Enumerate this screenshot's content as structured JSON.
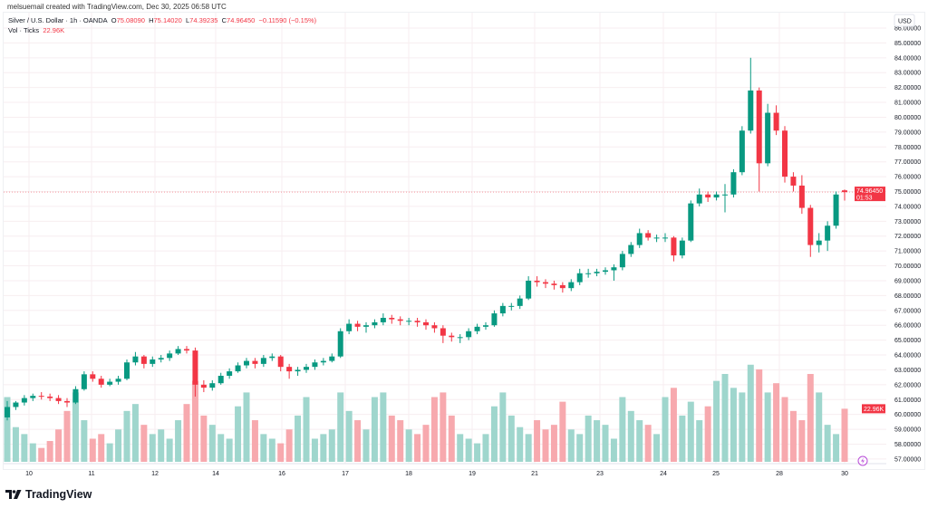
{
  "credit": "melsuemail created with TradingView.com, Dec 30, 2025 06:58 UTC",
  "legend": {
    "symbol": "Silver / U.S. Dollar · 1h · OANDA",
    "o_label": "O",
    "o": "75.08090",
    "h_label": "H",
    "h": "75.14020",
    "l_label": "L",
    "l": "74.39235",
    "c_label": "C",
    "c": "74.96450",
    "change": "−0.11590 (−0.15%)",
    "vol_label": "Vol · Ticks",
    "vol": "22.96K"
  },
  "logo": "TradingView",
  "colors": {
    "up": "#089981",
    "down": "#f23645",
    "up_volume": "#9fd6cd",
    "down_volume": "#f7a9ae",
    "indicator_icon": "#b84cd8"
  },
  "chart_data": {
    "type": "candlestick",
    "interval": "1h",
    "currency": "USD",
    "ylim": [
      56.2,
      86.1
    ],
    "y_ticks": [
      "57.00000",
      "58.00000",
      "59.00000",
      "60.00000",
      "61.00000",
      "62.00000",
      "63.00000",
      "64.00000",
      "65.00000",
      "66.00000",
      "67.00000",
      "68.00000",
      "69.00000",
      "70.00000",
      "71.00000",
      "72.00000",
      "73.00000",
      "74.00000",
      "75.00000",
      "76.00000",
      "77.00000",
      "78.00000",
      "79.00000",
      "80.00000",
      "81.00000",
      "82.00000",
      "83.00000",
      "84.00000",
      "85.00000",
      "86.00000"
    ],
    "x_ticks": [
      "10",
      "11",
      "12",
      "14",
      "16",
      "17",
      "18",
      "19",
      "21",
      "23",
      "24",
      "25",
      "28",
      "30"
    ],
    "last_price": {
      "value": 74.9645,
      "label": "74.96450",
      "countdown": "01:53"
    },
    "last_volume_label": "22.96K",
    "grid": true,
    "ohlc": [
      [
        59.8,
        60.9,
        59.6,
        60.5
      ],
      [
        60.5,
        60.9,
        60.3,
        60.8
      ],
      [
        60.8,
        61.3,
        60.6,
        61.1
      ],
      [
        61.1,
        61.4,
        60.9,
        61.25
      ],
      [
        61.25,
        61.5,
        61.0,
        61.2
      ],
      [
        61.2,
        61.4,
        60.9,
        61.1
      ],
      [
        61.1,
        61.3,
        60.7,
        60.9
      ],
      [
        60.9,
        61.1,
        60.5,
        60.8
      ],
      [
        60.8,
        61.9,
        60.7,
        61.7
      ],
      [
        61.7,
        62.9,
        61.6,
        62.7
      ],
      [
        62.7,
        62.9,
        62.2,
        62.4
      ],
      [
        62.4,
        62.6,
        61.8,
        62.0
      ],
      [
        62.0,
        62.4,
        61.9,
        62.2
      ],
      [
        62.2,
        62.6,
        62.0,
        62.4
      ],
      [
        62.4,
        63.7,
        62.3,
        63.5
      ],
      [
        63.5,
        64.2,
        63.3,
        63.9
      ],
      [
        63.9,
        64.0,
        63.1,
        63.4
      ],
      [
        63.4,
        63.9,
        63.2,
        63.7
      ],
      [
        63.7,
        64.0,
        63.5,
        63.8
      ],
      [
        63.8,
        64.3,
        63.6,
        64.1
      ],
      [
        64.1,
        64.6,
        64.0,
        64.4
      ],
      [
        64.4,
        64.6,
        64.1,
        64.3
      ],
      [
        64.3,
        64.5,
        61.2,
        62.0
      ],
      [
        62.0,
        62.3,
        61.5,
        61.8
      ],
      [
        61.8,
        62.3,
        61.6,
        62.1
      ],
      [
        62.1,
        62.8,
        62.0,
        62.6
      ],
      [
        62.6,
        63.1,
        62.4,
        62.9
      ],
      [
        62.9,
        63.5,
        62.8,
        63.3
      ],
      [
        63.3,
        63.8,
        63.1,
        63.6
      ],
      [
        63.6,
        63.8,
        63.1,
        63.4
      ],
      [
        63.4,
        64.0,
        63.2,
        63.8
      ],
      [
        63.8,
        64.1,
        63.6,
        63.9
      ],
      [
        63.9,
        64.0,
        62.9,
        63.2
      ],
      [
        63.2,
        63.4,
        62.4,
        62.9
      ],
      [
        62.9,
        63.2,
        62.6,
        63.0
      ],
      [
        63.0,
        63.4,
        62.8,
        63.2
      ],
      [
        63.2,
        63.7,
        63.0,
        63.5
      ],
      [
        63.5,
        63.8,
        63.3,
        63.6
      ],
      [
        63.6,
        64.1,
        63.5,
        63.9
      ],
      [
        63.9,
        65.8,
        63.8,
        65.6
      ],
      [
        65.6,
        66.4,
        65.4,
        66.1
      ],
      [
        66.1,
        66.3,
        65.6,
        65.9
      ],
      [
        65.9,
        66.2,
        65.5,
        66.0
      ],
      [
        66.0,
        66.4,
        65.8,
        66.2
      ],
      [
        66.2,
        66.8,
        66.0,
        66.5
      ],
      [
        66.5,
        66.7,
        66.1,
        66.4
      ],
      [
        66.4,
        66.6,
        66.0,
        66.3
      ],
      [
        66.3,
        66.5,
        66.0,
        66.3
      ],
      [
        66.3,
        66.5,
        65.9,
        66.2
      ],
      [
        66.2,
        66.4,
        65.7,
        66.0
      ],
      [
        66.0,
        66.2,
        65.5,
        65.8
      ],
      [
        65.8,
        66.0,
        64.8,
        65.3
      ],
      [
        65.3,
        65.5,
        64.9,
        65.2
      ],
      [
        65.2,
        65.4,
        64.8,
        65.2
      ],
      [
        65.2,
        65.8,
        65.0,
        65.6
      ],
      [
        65.6,
        66.1,
        65.4,
        65.9
      ],
      [
        65.9,
        66.2,
        65.7,
        66.0
      ],
      [
        66.0,
        67.0,
        65.9,
        66.8
      ],
      [
        66.8,
        67.5,
        66.6,
        67.3
      ],
      [
        67.3,
        67.5,
        67.0,
        67.3
      ],
      [
        67.3,
        68.0,
        67.1,
        67.8
      ],
      [
        67.8,
        69.3,
        67.7,
        69.0
      ],
      [
        69.0,
        69.3,
        68.6,
        68.9
      ],
      [
        68.9,
        69.1,
        68.5,
        68.8
      ],
      [
        68.8,
        69.0,
        68.4,
        68.7
      ],
      [
        68.7,
        68.9,
        68.2,
        68.5
      ],
      [
        68.5,
        69.1,
        68.3,
        68.9
      ],
      [
        68.9,
        69.8,
        68.7,
        69.5
      ],
      [
        69.5,
        69.8,
        69.2,
        69.5
      ],
      [
        69.5,
        69.8,
        69.3,
        69.6
      ],
      [
        69.6,
        69.9,
        69.4,
        69.7
      ],
      [
        69.7,
        70.1,
        69.0,
        69.9
      ],
      [
        69.9,
        71.0,
        69.7,
        70.8
      ],
      [
        70.8,
        71.6,
        70.6,
        71.4
      ],
      [
        71.4,
        72.5,
        71.2,
        72.2
      ],
      [
        72.2,
        72.4,
        71.7,
        71.9
      ],
      [
        71.9,
        72.1,
        71.6,
        71.9
      ],
      [
        71.9,
        72.2,
        71.6,
        71.9
      ],
      [
        71.9,
        72.0,
        70.3,
        70.7
      ],
      [
        70.7,
        71.9,
        70.5,
        71.7
      ],
      [
        71.7,
        74.4,
        71.6,
        74.2
      ],
      [
        74.2,
        75.2,
        74.0,
        74.8
      ],
      [
        74.8,
        75.0,
        74.3,
        74.6
      ],
      [
        74.6,
        75.0,
        74.4,
        74.8
      ],
      [
        74.8,
        75.5,
        73.6,
        74.8
      ],
      [
        74.8,
        76.5,
        74.6,
        76.3
      ],
      [
        76.3,
        79.4,
        76.1,
        79.1
      ],
      [
        79.1,
        84.0,
        78.9,
        81.8
      ],
      [
        81.8,
        82.0,
        75.0,
        76.9
      ],
      [
        76.9,
        80.9,
        76.7,
        80.3
      ],
      [
        80.3,
        80.8,
        78.8,
        79.1
      ],
      [
        79.1,
        79.4,
        75.6,
        76.0
      ],
      [
        76.0,
        76.3,
        75.0,
        75.4
      ],
      [
        75.4,
        76.1,
        73.5,
        73.9
      ],
      [
        73.9,
        74.1,
        70.6,
        71.4
      ],
      [
        71.4,
        72.2,
        70.9,
        71.7
      ],
      [
        71.7,
        73.0,
        71.0,
        72.7
      ],
      [
        72.7,
        75.0,
        72.5,
        74.8
      ],
      [
        75.08,
        75.14,
        74.39,
        74.96
      ]
    ],
    "volume_k": [
      28,
      15,
      12,
      8,
      6,
      9,
      14,
      22,
      30,
      18,
      10,
      12,
      8,
      14,
      22,
      25,
      16,
      12,
      14,
      10,
      18,
      25,
      35,
      20,
      16,
      12,
      10,
      24,
      30,
      18,
      12,
      10,
      8,
      14,
      20,
      28,
      10,
      12,
      14,
      30,
      22,
      18,
      14,
      28,
      30,
      20,
      18,
      14,
      12,
      16,
      28,
      30,
      20,
      12,
      10,
      8,
      12,
      24,
      30,
      20,
      15,
      12,
      18,
      14,
      16,
      26,
      14,
      12,
      20,
      18,
      16,
      10,
      28,
      22,
      18,
      16,
      12,
      28,
      32,
      20,
      26,
      18,
      24,
      35,
      38,
      32,
      30,
      42,
      40,
      30,
      34,
      28,
      22,
      18,
      38,
      30,
      16,
      12,
      22.96
    ]
  }
}
